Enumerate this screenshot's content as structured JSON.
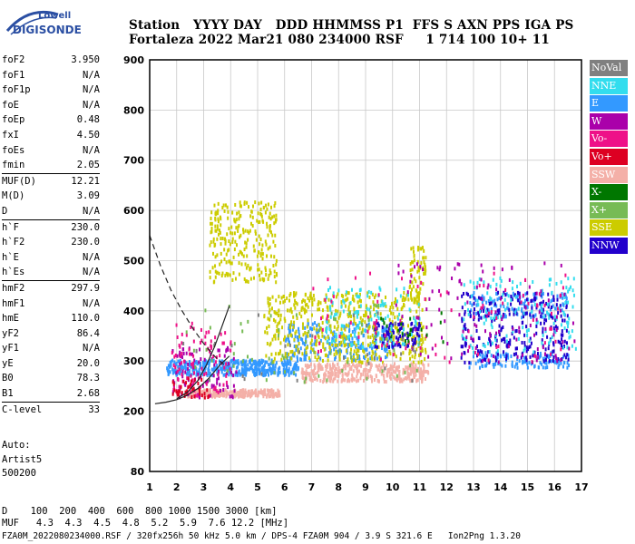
{
  "logo": {
    "line1": "Lowell",
    "line2": "DIGISONDE"
  },
  "header": {
    "line1": "Station   YYYY DAY   DDD HHMMSS P1  FFS S AXN PPS IGA PS",
    "line2": "Fortaleza 2022 Mar21 080 234000 RSF     1 714 100 10+ 11"
  },
  "params": [
    {
      "label": "foF2",
      "value": "3.950"
    },
    {
      "label": "foF1",
      "value": "N/A"
    },
    {
      "label": "foF1p",
      "value": "N/A"
    },
    {
      "label": "foE",
      "value": "N/A"
    },
    {
      "label": "foEp",
      "value": "0.48"
    },
    {
      "label": "fxI",
      "value": "4.50"
    },
    {
      "label": "foEs",
      "value": "N/A"
    },
    {
      "label": "fmin",
      "value": "2.05"
    },
    {
      "label": "MUF(D)",
      "value": "12.21"
    },
    {
      "label": "M(D)",
      "value": "3.09"
    },
    {
      "label": "D",
      "value": "N/A"
    },
    {
      "label": "h`F",
      "value": "230.0"
    },
    {
      "label": "h`F2",
      "value": "230.0"
    },
    {
      "label": "h`E",
      "value": "N/A"
    },
    {
      "label": "h`Es",
      "value": "N/A"
    },
    {
      "label": "hmF2",
      "value": "297.9"
    },
    {
      "label": "hmF1",
      "value": "N/A"
    },
    {
      "label": "hmE",
      "value": "110.0"
    },
    {
      "label": "yF2",
      "value": "86.4"
    },
    {
      "label": "yF1",
      "value": "N/A"
    },
    {
      "label": "yE",
      "value": "20.0"
    },
    {
      "label": "B0",
      "value": "78.3"
    },
    {
      "label": "B1",
      "value": "2.68"
    },
    {
      "label": "C-level",
      "value": "33"
    }
  ],
  "auto": {
    "line1": "Auto:",
    "line2": "Artist5",
    "line3": "500200"
  },
  "legend": [
    {
      "label": "NoVal",
      "color": "#808080"
    },
    {
      "label": "NNE",
      "color": "#33ddee"
    },
    {
      "label": "E",
      "color": "#3399ff"
    },
    {
      "label": "W",
      "color": "#aa00aa"
    },
    {
      "label": "Vo-",
      "color": "#ee1188"
    },
    {
      "label": "Vo+",
      "color": "#dd0022"
    },
    {
      "label": "SSW",
      "color": "#f4b0a8"
    },
    {
      "label": "X-",
      "color": "#007700"
    },
    {
      "label": "X+",
      "color": "#77bb55"
    },
    {
      "label": "SSE",
      "color": "#cccc00"
    },
    {
      "label": "NNW",
      "color": "#2200cc"
    }
  ],
  "footer": {
    "line1": "D    100  200  400  600  800 1000 1500 3000 [km]",
    "line2": "MUF   4.3  4.3  4.5  4.8  5.2  5.9  7.6 12.2 [MHz]",
    "line3": "FZA0M_2022080234000.RSF / 320fx256h 50 kHz 5.0 km / DPS-4 FZA0M 904 / 3.9 S 321.6 E   Ion2Png 1.3.20"
  },
  "chart_data": {
    "type": "scatter",
    "xlim": [
      1,
      17
    ],
    "ylim": [
      80,
      900
    ],
    "xticks": [
      1,
      2,
      3,
      4,
      5,
      6,
      7,
      8,
      9,
      10,
      11,
      12,
      13,
      14,
      15,
      16,
      17
    ],
    "yticks": [
      80,
      200,
      300,
      400,
      500,
      600,
      700,
      800,
      900
    ],
    "xtick_labels": [
      "1",
      "2",
      "3",
      "4",
      "5",
      "6",
      "7",
      "8",
      "9",
      "10",
      "11",
      "12",
      "13",
      "14",
      "15",
      "16",
      "17"
    ],
    "ytick_labels": [
      "80",
      "200",
      "300",
      "400",
      "500",
      "600",
      "700",
      "800",
      "900"
    ],
    "grid": true,
    "series": [
      {
        "name": "E",
        "color": "#3399ff",
        "clusters": [
          {
            "x": [
              1.6,
              6.5
            ],
            "y": [
              275,
              305
            ],
            "n": 420
          },
          {
            "x": [
              6.0,
              10.0
            ],
            "y": [
              305,
              380
            ],
            "n": 260
          },
          {
            "x": [
              12.8,
              16.5
            ],
            "y": [
              290,
              320
            ],
            "n": 120
          },
          {
            "x": [
              12.8,
              16.5
            ],
            "y": [
              390,
              440
            ],
            "n": 120
          }
        ]
      },
      {
        "name": "SSE",
        "color": "#cccc00",
        "clusters": [
          {
            "x": [
              3.2,
              5.7
            ],
            "y": [
              460,
              620
            ],
            "n": 260
          },
          {
            "x": [
              5.2,
              11.2
            ],
            "y": [
              300,
              440
            ],
            "n": 520
          },
          {
            "x": [
              10.6,
              11.2
            ],
            "y": [
              420,
              530
            ],
            "n": 60
          }
        ]
      },
      {
        "name": "SSW",
        "color": "#f4b0a8",
        "clusters": [
          {
            "x": [
              2.3,
              5.8
            ],
            "y": [
              232,
              246
            ],
            "n": 260
          },
          {
            "x": [
              6.6,
              11.3
            ],
            "y": [
              262,
              298
            ],
            "n": 360
          }
        ]
      },
      {
        "name": "NNW",
        "color": "#2200cc",
        "clusters": [
          {
            "x": [
              9.3,
              11.0
            ],
            "y": [
              330,
              380
            ],
            "n": 90
          },
          {
            "x": [
              12.5,
              16.5
            ],
            "y": [
              300,
              440
            ],
            "n": 260
          }
        ]
      },
      {
        "name": "NNE",
        "color": "#33ddee",
        "clusters": [
          {
            "x": [
              7.5,
              11.0
            ],
            "y": [
              330,
              450
            ],
            "n": 120
          },
          {
            "x": [
              12.5,
              16.8
            ],
            "y": [
              320,
              470
            ],
            "n": 140
          }
        ]
      },
      {
        "name": "W",
        "color": "#aa00aa",
        "clusters": [
          {
            "x": [
              1.8,
              4.2
            ],
            "y": [
              230,
              330
            ],
            "n": 90
          },
          {
            "x": [
              10.0,
              16.8
            ],
            "y": [
              300,
              500
            ],
            "n": 120
          }
        ]
      },
      {
        "name": "Vo-",
        "color": "#ee1188",
        "clusters": [
          {
            "x": [
              1.8,
              4.0
            ],
            "y": [
              230,
              380
            ],
            "n": 90
          },
          {
            "x": [
              7.0,
              16.8
            ],
            "y": [
              300,
              480
            ],
            "n": 90
          }
        ]
      },
      {
        "name": "Vo+",
        "color": "#dd0022",
        "clusters": [
          {
            "x": [
              1.8,
              3.2
            ],
            "y": [
              230,
              270
            ],
            "n": 40
          }
        ]
      },
      {
        "name": "X+",
        "color": "#77bb55",
        "clusters": [
          {
            "x": [
              2.0,
              11.0
            ],
            "y": [
              260,
              420
            ],
            "n": 70
          }
        ]
      },
      {
        "name": "X-",
        "color": "#007700",
        "clusters": [
          {
            "x": [
              9.5,
              12.0
            ],
            "y": [
              340,
              400
            ],
            "n": 20
          }
        ]
      },
      {
        "name": "NoVal",
        "color": "#808080",
        "clusters": [
          {
            "x": [
              2.0,
              11.0
            ],
            "y": [
              260,
              400
            ],
            "n": 30
          }
        ]
      }
    ],
    "curves": [
      {
        "style": "dashed",
        "x": [
          1.0,
          1.4,
          1.8,
          2.2,
          2.6,
          3.0,
          3.4,
          3.7,
          3.9
        ],
        "y": [
          550,
          490,
          440,
          400,
          365,
          335,
          310,
          295,
          290
        ]
      },
      {
        "style": "solid",
        "x": [
          1.2,
          1.6,
          2.0,
          2.4,
          2.8,
          3.2,
          3.6,
          3.95
        ],
        "y": [
          215,
          218,
          223,
          232,
          246,
          266,
          292,
          310
        ]
      },
      {
        "style": "solid",
        "x": [
          2.0,
          2.4,
          2.8,
          3.1,
          3.4,
          3.7,
          3.95
        ],
        "y": [
          225,
          238,
          262,
          292,
          328,
          372,
          410
        ]
      }
    ]
  }
}
